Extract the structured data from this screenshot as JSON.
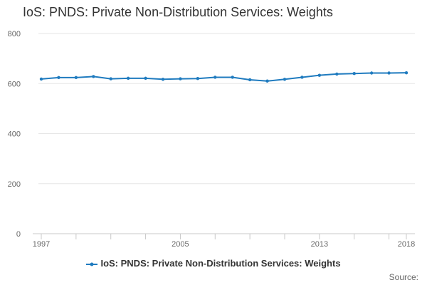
{
  "chart_data": {
    "type": "line",
    "title": "IoS: PNDS: Private Non-Distribution Services: Weights",
    "x": [
      1997,
      1998,
      1999,
      2000,
      2001,
      2002,
      2003,
      2004,
      2005,
      2006,
      2007,
      2008,
      2009,
      2010,
      2011,
      2012,
      2013,
      2014,
      2015,
      2016,
      2017,
      2018
    ],
    "series": [
      {
        "name": "IoS: PNDS: Private Non-Distribution Services: Weights",
        "color": "#1f7bbf",
        "values": [
          618,
          624,
          624,
          628,
          619,
          621,
          621,
          617,
          619,
          620,
          625,
          625,
          615,
          610,
          617,
          625,
          633,
          638,
          640,
          642,
          642,
          643
        ]
      }
    ],
    "x_tick_labels": [
      "1997",
      "2005",
      "2013",
      "2018"
    ],
    "y_ticks": [
      0,
      200,
      400,
      600,
      800
    ],
    "ylim": [
      0,
      800
    ],
    "xlabel": "",
    "ylabel": "",
    "grid": "horizontal",
    "legend_position": "bottom"
  },
  "source_label": "Source:",
  "legend_icon": "line-marker-icon"
}
